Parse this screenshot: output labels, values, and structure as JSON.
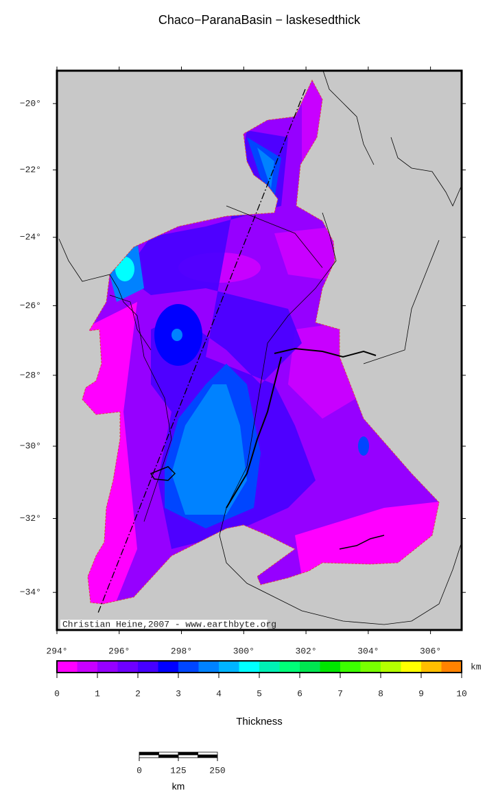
{
  "title": "Chaco−ParanaBasin − laskesedthick",
  "map": {
    "projection": "mercator",
    "xlim": [
      294,
      307
    ],
    "ylim": [
      -35,
      -19
    ],
    "xticks": [
      {
        "value": 294,
        "label": "294°"
      },
      {
        "value": 296,
        "label": "296°"
      },
      {
        "value": 298,
        "label": "298°"
      },
      {
        "value": 300,
        "label": "300°"
      },
      {
        "value": 302,
        "label": "302°"
      },
      {
        "value": 304,
        "label": "304°"
      },
      {
        "value": 306,
        "label": "306°"
      }
    ],
    "yticks": [
      {
        "value": -20,
        "label": "−20°"
      },
      {
        "value": -22,
        "label": "−22°"
      },
      {
        "value": -24,
        "label": "−24°"
      },
      {
        "value": -26,
        "label": "−26°"
      },
      {
        "value": -28,
        "label": "−28°"
      },
      {
        "value": -30,
        "label": "−30°"
      },
      {
        "value": -32,
        "label": "−32°"
      },
      {
        "value": -34,
        "label": "−34°"
      }
    ],
    "credit": "Christian Heine,2007 - www.earthbyte.org"
  },
  "colorbar": {
    "lim": [
      0,
      10
    ],
    "ticks": [
      0,
      1,
      2,
      3,
      4,
      5,
      6,
      7,
      8,
      9,
      10
    ],
    "unit": "km",
    "label": "Thickness",
    "colors": [
      "#ff00ff",
      "#c800ff",
      "#9600ff",
      "#6e00ff",
      "#4600ff",
      "#0000ff",
      "#0046ff",
      "#0082ff",
      "#00b4ff",
      "#00ffff",
      "#00f0b4",
      "#00ff78",
      "#00e650",
      "#00e600",
      "#3cff00",
      "#78ff00",
      "#b4ff00",
      "#ffff00",
      "#ffbe00",
      "#ff8200",
      "#ff4600"
    ]
  },
  "scale_bar": {
    "lim": [
      0,
      250
    ],
    "ticks": [
      0,
      125,
      250
    ],
    "unit": "km"
  }
}
